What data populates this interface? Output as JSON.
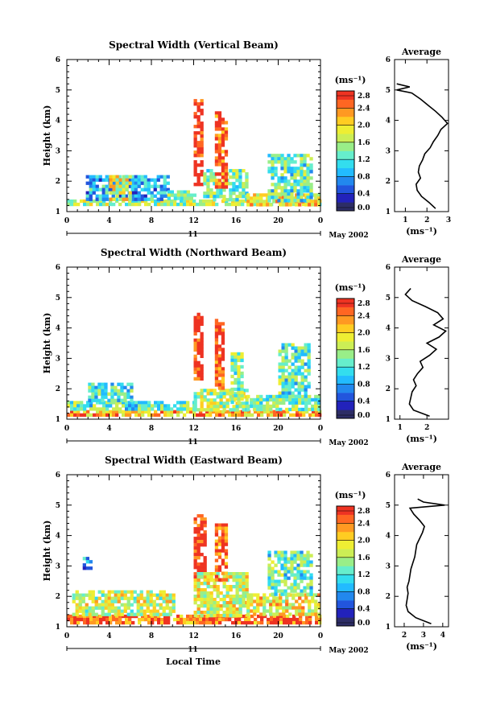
{
  "figure": {
    "bottom_xlabel": "Local Time",
    "colors": {
      "scale": [
        "#2d2d66",
        "#2222bb",
        "#2255dd",
        "#2288ee",
        "#22bbff",
        "#33ddee",
        "#66eecc",
        "#99ee88",
        "#ccee55",
        "#eeee33",
        "#ffcc22",
        "#ff9922",
        "#ff6622",
        "#ee3322"
      ]
    }
  },
  "chart_data": [
    {
      "type": "heatmap",
      "title": "Spectral Width (Vertical Beam)",
      "ylabel": "Height (km)",
      "ylim": [
        1,
        6
      ],
      "yticks": [
        "1",
        "2",
        "3",
        "4",
        "5",
        "6"
      ],
      "xlim": [
        0,
        24
      ],
      "xticks": [
        "0",
        "4",
        "8",
        "12",
        "16",
        "20",
        "0"
      ],
      "date_label": "11",
      "month_label": "May 2002",
      "colorbar": {
        "unit": "(ms⁻¹)",
        "ticks": [
          "2.8",
          "2.4",
          "2.0",
          "1.6",
          "1.2",
          "0.8",
          "0.4",
          "0.0"
        ],
        "range": [
          0,
          2.8
        ]
      },
      "regions": [
        {
          "t": [
            0,
            24
          ],
          "h": [
            1.2,
            1.4
          ],
          "value": 1.6
        },
        {
          "t": [
            1.8,
            9.5
          ],
          "h": [
            1.4,
            2.2
          ],
          "value": 0.9
        },
        {
          "t": [
            4.0,
            6.0
          ],
          "h": [
            1.4,
            2.2
          ],
          "value": 1.8
        },
        {
          "t": [
            9.5,
            12.0
          ],
          "h": [
            1.4,
            1.7
          ],
          "value": 1.4
        },
        {
          "t": [
            12.0,
            12.9
          ],
          "h": [
            1.9,
            4.7
          ],
          "value": 2.8
        },
        {
          "t": [
            12.9,
            17.0
          ],
          "h": [
            1.4,
            2.4
          ],
          "value": 1.4
        },
        {
          "t": [
            14.0,
            15.0
          ],
          "h": [
            1.8,
            4.3
          ],
          "value": 2.6
        },
        {
          "t": [
            17.0,
            24.0
          ],
          "h": [
            1.2,
            1.6
          ],
          "value": 2.0
        },
        {
          "t": [
            19.0,
            23.0
          ],
          "h": [
            1.4,
            2.9
          ],
          "value": 1.3
        }
      ],
      "average": {
        "title": "Average",
        "xlabel": "(ms⁻¹)",
        "xlim": [
          0.5,
          3
        ],
        "xticks": [
          "1",
          "2",
          "3"
        ],
        "height_km": [
          1.1,
          1.3,
          1.5,
          1.7,
          1.9,
          2.1,
          2.3,
          2.5,
          2.7,
          2.9,
          3.1,
          3.3,
          3.5,
          3.7,
          3.9,
          4.1,
          4.3,
          4.5,
          4.7,
          4.9,
          5.0,
          5.1,
          5.2
        ],
        "width": [
          2.4,
          2.1,
          1.75,
          1.55,
          1.5,
          1.7,
          1.6,
          1.65,
          1.8,
          1.9,
          2.15,
          2.3,
          2.5,
          2.65,
          2.95,
          2.7,
          2.4,
          2.05,
          1.7,
          1.3,
          0.6,
          1.2,
          0.6
        ]
      }
    },
    {
      "type": "heatmap",
      "title": "Spectral Width (Northward Beam)",
      "ylabel": "Height (km)",
      "ylim": [
        1,
        6
      ],
      "yticks": [
        "1",
        "2",
        "3",
        "4",
        "5",
        "6"
      ],
      "xlim": [
        0,
        24
      ],
      "xticks": [
        "0",
        "4",
        "8",
        "12",
        "16",
        "20",
        "0"
      ],
      "date_label": "11",
      "month_label": "May 2002",
      "colorbar": {
        "unit": "(ms⁻¹)",
        "ticks": [
          "2.8",
          "2.4",
          "2.0",
          "1.6",
          "1.2",
          "0.8",
          "0.4",
          "0.0"
        ],
        "range": [
          0,
          2.8
        ]
      },
      "regions": [
        {
          "t": [
            0,
            24
          ],
          "h": [
            1.1,
            1.3
          ],
          "value": 2.2
        },
        {
          "t": [
            0,
            12
          ],
          "h": [
            1.3,
            1.6
          ],
          "value": 1.3
        },
        {
          "t": [
            2.0,
            6.0
          ],
          "h": [
            1.6,
            2.2
          ],
          "value": 1.2
        },
        {
          "t": [
            12.0,
            12.8
          ],
          "h": [
            2.3,
            4.5
          ],
          "value": 2.8
        },
        {
          "t": [
            12.0,
            17.0
          ],
          "h": [
            1.3,
            2.0
          ],
          "value": 1.6
        },
        {
          "t": [
            14.0,
            14.8
          ],
          "h": [
            2.0,
            4.3
          ],
          "value": 2.6
        },
        {
          "t": [
            15.5,
            16.5
          ],
          "h": [
            1.6,
            3.2
          ],
          "value": 1.5
        },
        {
          "t": [
            17.0,
            24.0
          ],
          "h": [
            1.3,
            1.8
          ],
          "value": 1.4
        },
        {
          "t": [
            20.0,
            23.0
          ],
          "h": [
            1.8,
            3.5
          ],
          "value": 1.3
        }
      ],
      "average": {
        "title": "Average",
        "xlabel": "(ms⁻¹)",
        "xlim": [
          0.8,
          2.8
        ],
        "xticks": [
          "1",
          "2"
        ],
        "height_km": [
          1.1,
          1.3,
          1.5,
          1.7,
          1.9,
          2.1,
          2.3,
          2.5,
          2.7,
          2.9,
          3.1,
          3.3,
          3.5,
          3.7,
          3.9,
          4.1,
          4.3,
          4.5,
          4.7,
          4.9,
          5.1,
          5.3
        ],
        "width": [
          2.1,
          1.5,
          1.35,
          1.4,
          1.45,
          1.6,
          1.5,
          1.65,
          1.85,
          1.75,
          2.1,
          2.35,
          2.0,
          2.45,
          2.7,
          2.25,
          2.6,
          2.4,
          1.95,
          1.45,
          1.2,
          1.4
        ]
      }
    },
    {
      "type": "heatmap",
      "title": "Spectral Width (Eastward Beam)",
      "ylabel": "Height (km)",
      "ylim": [
        1,
        6
      ],
      "yticks": [
        "1",
        "2",
        "3",
        "4",
        "5",
        "6"
      ],
      "xlim": [
        0,
        24
      ],
      "xticks": [
        "0",
        "4",
        "8",
        "12",
        "16",
        "20",
        "0"
      ],
      "date_label": "11",
      "month_label": "May 2002",
      "colorbar": {
        "unit": "(ms⁻¹)",
        "ticks": [
          "2.8",
          "2.4",
          "2.0",
          "1.6",
          "1.2",
          "0.8",
          "0.4",
          "0.0"
        ],
        "range": [
          0,
          2.8
        ]
      },
      "regions": [
        {
          "t": [
            0,
            24
          ],
          "h": [
            1.1,
            1.4
          ],
          "value": 2.5
        },
        {
          "t": [
            0.5,
            10.0
          ],
          "h": [
            1.4,
            2.2
          ],
          "value": 1.7
        },
        {
          "t": [
            1.5,
            2.2
          ],
          "h": [
            2.9,
            3.3
          ],
          "value": 0.8
        },
        {
          "t": [
            12.0,
            13.0
          ],
          "h": [
            2.6,
            4.7
          ],
          "value": 2.8
        },
        {
          "t": [
            12.0,
            17.0
          ],
          "h": [
            1.4,
            2.8
          ],
          "value": 1.8
        },
        {
          "t": [
            14.0,
            15.0
          ],
          "h": [
            2.5,
            4.4
          ],
          "value": 2.6
        },
        {
          "t": [
            17.0,
            24.0
          ],
          "h": [
            1.4,
            2.1
          ],
          "value": 1.9
        },
        {
          "t": [
            19.0,
            23.0
          ],
          "h": [
            2.1,
            3.5
          ],
          "value": 1.3
        }
      ],
      "average": {
        "title": "Average",
        "xlabel": "(ms⁻¹)",
        "xlim": [
          1.5,
          4.3
        ],
        "xticks": [
          "2",
          "3",
          "4"
        ],
        "height_km": [
          1.1,
          1.3,
          1.5,
          1.7,
          1.9,
          2.1,
          2.3,
          2.5,
          2.7,
          2.9,
          3.1,
          3.3,
          3.5,
          3.7,
          3.9,
          4.1,
          4.3,
          4.5,
          4.7,
          4.9,
          5.0,
          5.1,
          5.2
        ],
        "width": [
          3.4,
          2.6,
          2.2,
          2.1,
          2.15,
          2.2,
          2.15,
          2.25,
          2.3,
          2.35,
          2.45,
          2.55,
          2.6,
          2.65,
          2.8,
          2.95,
          3.05,
          2.8,
          2.5,
          2.3,
          4.1,
          3.0,
          2.7
        ]
      }
    }
  ]
}
